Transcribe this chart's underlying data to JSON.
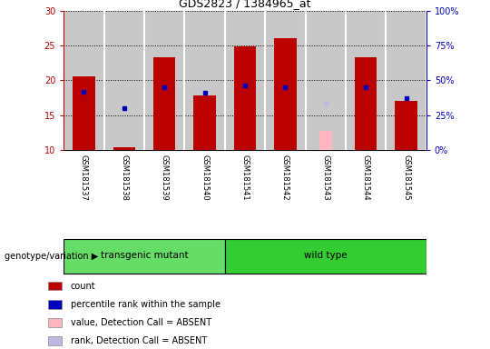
{
  "title": "GDS2823 / 1384965_at",
  "samples": [
    "GSM181537",
    "GSM181538",
    "GSM181539",
    "GSM181540",
    "GSM181541",
    "GSM181542",
    "GSM181543",
    "GSM181544",
    "GSM181545"
  ],
  "red_bars": [
    20.6,
    10.4,
    23.3,
    17.8,
    24.8,
    26.0,
    null,
    23.3,
    17.0
  ],
  "blue_dots": [
    18.4,
    16.0,
    19.0,
    18.2,
    19.2,
    19.0,
    null,
    19.0,
    17.5
  ],
  "pink_bar": [
    null,
    null,
    null,
    null,
    null,
    null,
    12.7,
    null,
    null
  ],
  "lavender_dot": [
    null,
    null,
    null,
    null,
    null,
    null,
    16.7,
    null,
    null
  ],
  "bar_bottom": 10,
  "ylim": [
    10,
    30
  ],
  "yticks_left": [
    10,
    15,
    20,
    25,
    30
  ],
  "yticks_right": [
    0,
    25,
    50,
    75,
    100
  ],
  "right_ylim": [
    0,
    100
  ],
  "groups": [
    {
      "label": "transgenic mutant",
      "start": 0,
      "end": 4,
      "color": "#66DD66"
    },
    {
      "label": "wild type",
      "start": 4,
      "end": 9,
      "color": "#33CC33"
    }
  ],
  "group_row_label": "genotype/variation",
  "red_color": "#BB0000",
  "blue_color": "#0000BB",
  "pink_color": "#FFB6C1",
  "lavender_color": "#C0B8E0",
  "bg_color": "#C8C8C8",
  "legend_items": [
    {
      "color": "#BB0000",
      "label": "count"
    },
    {
      "color": "#0000BB",
      "label": "percentile rank within the sample"
    },
    {
      "color": "#FFB6C1",
      "label": "value, Detection Call = ABSENT"
    },
    {
      "color": "#C0B8E0",
      "label": "rank, Detection Call = ABSENT"
    }
  ],
  "grid_yticks": [
    15,
    20,
    25,
    30
  ],
  "bar_width": 0.55,
  "n_samples": 9
}
